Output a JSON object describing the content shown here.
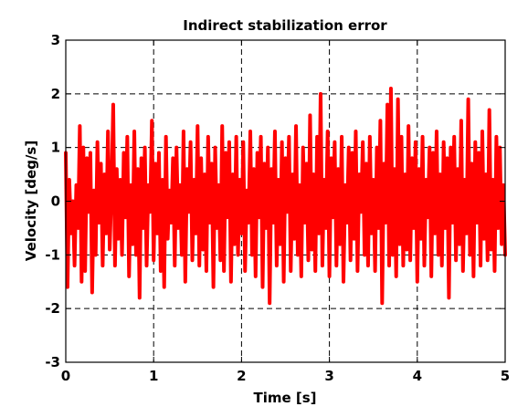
{
  "chart_data": {
    "type": "line",
    "title": "Indirect stabilization error",
    "xlabel": "Time [s]",
    "ylabel": "Velocity [deg/s]",
    "xlim": [
      0,
      5
    ],
    "ylim": [
      -3,
      3
    ],
    "xticks": [
      "0",
      "1",
      "2",
      "3",
      "4",
      "5"
    ],
    "yticks": [
      "3",
      "2",
      "1",
      "0",
      "-1",
      "-2",
      "-3"
    ],
    "grid": true,
    "grid_style": "dashed",
    "series": [
      {
        "color": "#ff0000",
        "line_width": "thick",
        "points": [
          [
            0.0,
            0.9
          ],
          [
            0.02,
            -1.6
          ],
          [
            0.04,
            0.4
          ],
          [
            0.06,
            -0.6
          ],
          [
            0.08,
            0.0
          ],
          [
            0.1,
            -1.2
          ],
          [
            0.12,
            0.3
          ],
          [
            0.14,
            -0.5
          ],
          [
            0.16,
            1.4
          ],
          [
            0.18,
            -1.5
          ],
          [
            0.2,
            1.0
          ],
          [
            0.22,
            -1.3
          ],
          [
            0.24,
            0.8
          ],
          [
            0.26,
            -0.2
          ],
          [
            0.28,
            0.9
          ],
          [
            0.3,
            -1.7
          ],
          [
            0.32,
            0.2
          ],
          [
            0.34,
            -1.0
          ],
          [
            0.36,
            1.1
          ],
          [
            0.38,
            -0.4
          ],
          [
            0.4,
            0.7
          ],
          [
            0.42,
            -1.2
          ],
          [
            0.44,
            0.5
          ],
          [
            0.46,
            -0.6
          ],
          [
            0.48,
            1.3
          ],
          [
            0.5,
            -0.9
          ],
          [
            0.52,
            0.2
          ],
          [
            0.54,
            1.8
          ],
          [
            0.56,
            -1.2
          ],
          [
            0.58,
            0.6
          ],
          [
            0.6,
            -0.7
          ],
          [
            0.62,
            0.4
          ],
          [
            0.64,
            -1.0
          ],
          [
            0.66,
            0.9
          ],
          [
            0.68,
            -0.3
          ],
          [
            0.7,
            1.2
          ],
          [
            0.72,
            -1.4
          ],
          [
            0.74,
            0.3
          ],
          [
            0.76,
            -0.8
          ],
          [
            0.78,
            1.3
          ],
          [
            0.8,
            -1.0
          ],
          [
            0.82,
            0.6
          ],
          [
            0.84,
            -1.8
          ],
          [
            0.86,
            0.8
          ],
          [
            0.88,
            -0.5
          ],
          [
            0.9,
            1.0
          ],
          [
            0.92,
            -1.2
          ],
          [
            0.94,
            0.3
          ],
          [
            0.96,
            -0.2
          ],
          [
            0.98,
            1.5
          ],
          [
            1.0,
            -1.1
          ],
          [
            1.02,
            0.7
          ],
          [
            1.04,
            -0.6
          ],
          [
            1.06,
            0.9
          ],
          [
            1.08,
            -1.3
          ],
          [
            1.1,
            0.4
          ],
          [
            1.12,
            -1.6
          ],
          [
            1.14,
            1.2
          ],
          [
            1.16,
            -0.7
          ],
          [
            1.18,
            0.2
          ],
          [
            1.2,
            -0.4
          ],
          [
            1.22,
            0.8
          ],
          [
            1.24,
            -1.2
          ],
          [
            1.26,
            1.0
          ],
          [
            1.28,
            -0.5
          ],
          [
            1.3,
            0.3
          ],
          [
            1.32,
            -1.0
          ],
          [
            1.34,
            1.3
          ],
          [
            1.36,
            -1.5
          ],
          [
            1.38,
            0.6
          ],
          [
            1.4,
            -0.2
          ],
          [
            1.42,
            1.1
          ],
          [
            1.44,
            -1.1
          ],
          [
            1.46,
            0.4
          ],
          [
            1.48,
            -0.6
          ],
          [
            1.5,
            1.4
          ],
          [
            1.52,
            -1.2
          ],
          [
            1.54,
            0.8
          ],
          [
            1.56,
            -0.9
          ],
          [
            1.58,
            0.5
          ],
          [
            1.6,
            -1.3
          ],
          [
            1.62,
            1.2
          ],
          [
            1.64,
            -0.4
          ],
          [
            1.66,
            0.7
          ],
          [
            1.68,
            -1.6
          ],
          [
            1.7,
            1.0
          ],
          [
            1.72,
            -0.5
          ],
          [
            1.74,
            0.3
          ],
          [
            1.76,
            -1.1
          ],
          [
            1.78,
            1.4
          ],
          [
            1.8,
            -1.3
          ],
          [
            1.82,
            0.9
          ],
          [
            1.84,
            -0.3
          ],
          [
            1.86,
            1.1
          ],
          [
            1.88,
            -1.5
          ],
          [
            1.9,
            0.5
          ],
          [
            1.92,
            -0.8
          ],
          [
            1.94,
            1.2
          ],
          [
            1.96,
            -1.0
          ],
          [
            1.98,
            0.4
          ],
          [
            2.0,
            -0.6
          ],
          [
            2.02,
            1.1
          ],
          [
            2.04,
            -1.3
          ],
          [
            2.06,
            0.2
          ],
          [
            2.08,
            -0.4
          ],
          [
            2.1,
            1.3
          ],
          [
            2.12,
            -1.0
          ],
          [
            2.14,
            0.6
          ],
          [
            2.16,
            -1.4
          ],
          [
            2.18,
            0.9
          ],
          [
            2.2,
            -0.3
          ],
          [
            2.22,
            1.2
          ],
          [
            2.24,
            -1.6
          ],
          [
            2.26,
            0.7
          ],
          [
            2.28,
            -0.5
          ],
          [
            2.3,
            1.0
          ],
          [
            2.32,
            -1.9
          ],
          [
            2.34,
            0.6
          ],
          [
            2.36,
            -0.4
          ],
          [
            2.38,
            1.3
          ],
          [
            2.4,
            -1.2
          ],
          [
            2.42,
            0.4
          ],
          [
            2.44,
            -0.8
          ],
          [
            2.46,
            1.1
          ],
          [
            2.48,
            -1.5
          ],
          [
            2.5,
            0.8
          ],
          [
            2.52,
            -0.2
          ],
          [
            2.54,
            1.2
          ],
          [
            2.56,
            -1.3
          ],
          [
            2.58,
            0.5
          ],
          [
            2.6,
            -0.7
          ],
          [
            2.62,
            1.4
          ],
          [
            2.64,
            -1.0
          ],
          [
            2.66,
            0.3
          ],
          [
            2.68,
            -1.4
          ],
          [
            2.7,
            1.0
          ],
          [
            2.72,
            -0.4
          ],
          [
            2.74,
            0.7
          ],
          [
            2.76,
            -1.1
          ],
          [
            2.78,
            1.6
          ],
          [
            2.8,
            -0.9
          ],
          [
            2.82,
            0.5
          ],
          [
            2.84,
            -1.3
          ],
          [
            2.86,
            1.2
          ],
          [
            2.88,
            -0.6
          ],
          [
            2.9,
            2.0
          ],
          [
            2.92,
            -1.2
          ],
          [
            2.94,
            0.4
          ],
          [
            2.96,
            -0.5
          ],
          [
            2.98,
            1.3
          ],
          [
            3.0,
            -1.4
          ],
          [
            3.02,
            0.8
          ],
          [
            3.04,
            -0.3
          ],
          [
            3.06,
            1.1
          ],
          [
            3.08,
            -1.2
          ],
          [
            3.1,
            0.6
          ],
          [
            3.12,
            -0.8
          ],
          [
            3.14,
            1.2
          ],
          [
            3.16,
            -1.5
          ],
          [
            3.18,
            0.3
          ],
          [
            3.2,
            -0.4
          ],
          [
            3.22,
            1.0
          ],
          [
            3.24,
            -1.1
          ],
          [
            3.26,
            0.9
          ],
          [
            3.28,
            -0.7
          ],
          [
            3.3,
            1.3
          ],
          [
            3.32,
            -1.3
          ],
          [
            3.34,
            0.5
          ],
          [
            3.36,
            -0.2
          ],
          [
            3.38,
            1.1
          ],
          [
            3.4,
            -1.0
          ],
          [
            3.42,
            0.7
          ],
          [
            3.44,
            -1.2
          ],
          [
            3.46,
            1.2
          ],
          [
            3.48,
            -0.6
          ],
          [
            3.5,
            0.4
          ],
          [
            3.52,
            -1.3
          ],
          [
            3.54,
            1.0
          ],
          [
            3.56,
            -0.5
          ],
          [
            3.58,
            1.5
          ],
          [
            3.6,
            -1.9
          ],
          [
            3.62,
            0.7
          ],
          [
            3.64,
            -0.4
          ],
          [
            3.66,
            1.8
          ],
          [
            3.68,
            -1.2
          ],
          [
            3.7,
            2.1
          ],
          [
            3.72,
            -1.0
          ],
          [
            3.74,
            0.6
          ],
          [
            3.76,
            -1.4
          ],
          [
            3.78,
            1.9
          ],
          [
            3.8,
            -0.8
          ],
          [
            3.82,
            1.2
          ],
          [
            3.84,
            -1.2
          ],
          [
            3.86,
            0.5
          ],
          [
            3.88,
            -0.9
          ],
          [
            3.9,
            1.4
          ],
          [
            3.92,
            -1.1
          ],
          [
            3.94,
            0.8
          ],
          [
            3.96,
            -0.5
          ],
          [
            3.98,
            1.1
          ],
          [
            4.0,
            -1.5
          ],
          [
            4.02,
            0.6
          ],
          [
            4.04,
            -0.7
          ],
          [
            4.06,
            1.2
          ],
          [
            4.08,
            -1.2
          ],
          [
            4.1,
            0.4
          ],
          [
            4.12,
            -0.3
          ],
          [
            4.14,
            1.0
          ],
          [
            4.16,
            -1.4
          ],
          [
            4.18,
            0.9
          ],
          [
            4.2,
            -0.6
          ],
          [
            4.22,
            1.3
          ],
          [
            4.24,
            -1.0
          ],
          [
            4.26,
            0.5
          ],
          [
            4.28,
            -1.2
          ],
          [
            4.3,
            1.1
          ],
          [
            4.32,
            -0.5
          ],
          [
            4.34,
            0.8
          ],
          [
            4.36,
            -1.8
          ],
          [
            4.38,
            1.0
          ],
          [
            4.4,
            -0.4
          ],
          [
            4.42,
            1.2
          ],
          [
            4.44,
            -1.1
          ],
          [
            4.46,
            0.6
          ],
          [
            4.48,
            -0.8
          ],
          [
            4.5,
            1.5
          ],
          [
            4.52,
            -1.3
          ],
          [
            4.54,
            0.4
          ],
          [
            4.56,
            -0.6
          ],
          [
            4.58,
            1.9
          ],
          [
            4.6,
            -1.0
          ],
          [
            4.62,
            0.7
          ],
          [
            4.64,
            -1.4
          ],
          [
            4.66,
            1.1
          ],
          [
            4.68,
            -0.4
          ],
          [
            4.7,
            0.9
          ],
          [
            4.72,
            -1.2
          ],
          [
            4.74,
            1.3
          ],
          [
            4.76,
            -0.7
          ],
          [
            4.78,
            0.5
          ],
          [
            4.8,
            -1.1
          ],
          [
            4.82,
            1.7
          ],
          [
            4.84,
            -0.9
          ],
          [
            4.86,
            0.4
          ],
          [
            4.88,
            -1.3
          ],
          [
            4.9,
            1.2
          ],
          [
            4.92,
            -0.5
          ],
          [
            4.94,
            1.0
          ],
          [
            4.96,
            -0.8
          ],
          [
            4.98,
            0.3
          ],
          [
            5.0,
            -1.0
          ]
        ]
      }
    ]
  }
}
